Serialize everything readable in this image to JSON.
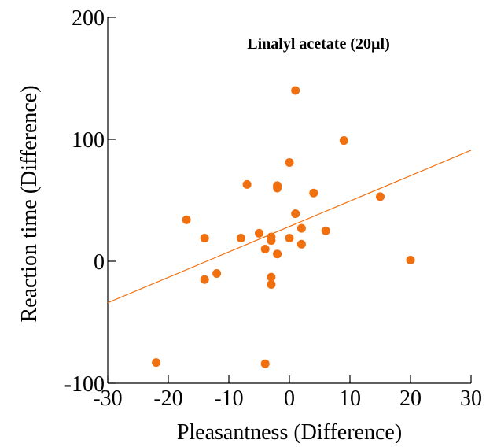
{
  "chart_data": {
    "type": "scatter",
    "title": "Linalyl acetate (20µl)",
    "xlabel": "Pleasantness (Difference)",
    "ylabel": "Reaction time (Difference)",
    "xlim": [
      -30,
      30
    ],
    "ylim": [
      -100,
      200
    ],
    "x_ticks": [
      -30,
      -20,
      -10,
      0,
      10,
      20,
      30
    ],
    "y_ticks": [
      -100,
      0,
      100,
      200
    ],
    "x_tick_labels": [
      "-30",
      "-20",
      "-10",
      "0",
      "10",
      "20",
      "30"
    ],
    "y_tick_labels": [
      "-100",
      "0",
      "100",
      "200"
    ],
    "grid": false,
    "legend": "none",
    "colors": {
      "points": "#f07010",
      "trendline": "#f07010",
      "axes": "#000000"
    },
    "points": [
      {
        "x": -22,
        "y": -83
      },
      {
        "x": -17,
        "y": 34
      },
      {
        "x": -14,
        "y": 19
      },
      {
        "x": -14,
        "y": -15
      },
      {
        "x": -12,
        "y": -10
      },
      {
        "x": -8,
        "y": 19
      },
      {
        "x": -7,
        "y": 63
      },
      {
        "x": -5,
        "y": 23
      },
      {
        "x": -4,
        "y": 10
      },
      {
        "x": -4,
        "y": -84
      },
      {
        "x": -3,
        "y": 20
      },
      {
        "x": -3,
        "y": 17
      },
      {
        "x": -3,
        "y": -13
      },
      {
        "x": -3,
        "y": -19
      },
      {
        "x": -2,
        "y": 62
      },
      {
        "x": -2,
        "y": 60
      },
      {
        "x": -2,
        "y": 6
      },
      {
        "x": 0,
        "y": 81
      },
      {
        "x": 0,
        "y": 19
      },
      {
        "x": 1,
        "y": 140
      },
      {
        "x": 1,
        "y": 39
      },
      {
        "x": 2,
        "y": 27
      },
      {
        "x": 2,
        "y": 14
      },
      {
        "x": 4,
        "y": 56
      },
      {
        "x": 6,
        "y": 25
      },
      {
        "x": 9,
        "y": 99
      },
      {
        "x": 15,
        "y": 53
      },
      {
        "x": 20,
        "y": 1
      }
    ],
    "trendline": {
      "x": [
        -30,
        30
      ],
      "y": [
        -34,
        91
      ]
    }
  }
}
